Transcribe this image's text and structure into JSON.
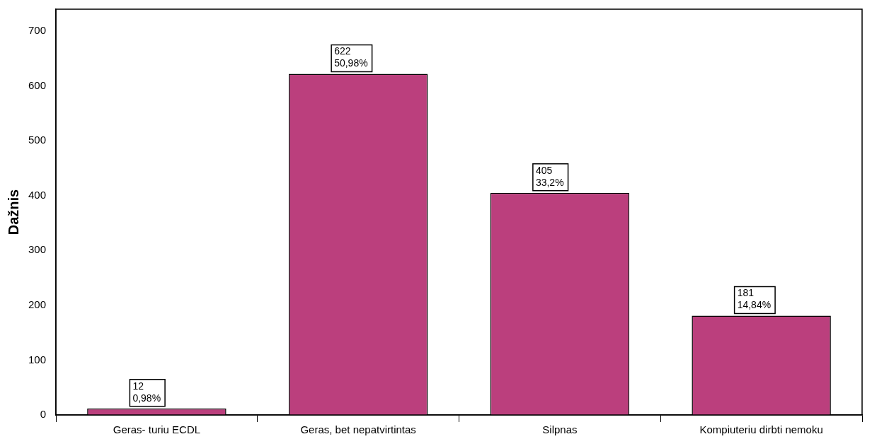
{
  "chart_data": {
    "type": "bar",
    "ylabel": "Dažnis",
    "categories": [
      "Geras- turiu ECDL",
      "Geras, bet nepatvirtintas",
      "Silpnas",
      "Kompiuteriu dirbti nemoku"
    ],
    "values": [
      12,
      622,
      405,
      181
    ],
    "color": "#bb3f7d",
    "value_labels": [
      "12\n0,98%",
      "622\n50,98%",
      "405\n33,2%",
      "181\n14,84%"
    ],
    "ylim": [
      0,
      740
    ],
    "yticks": [
      0,
      100,
      200,
      300,
      400,
      500,
      600,
      700
    ],
    "grid": false,
    "legend": false
  }
}
